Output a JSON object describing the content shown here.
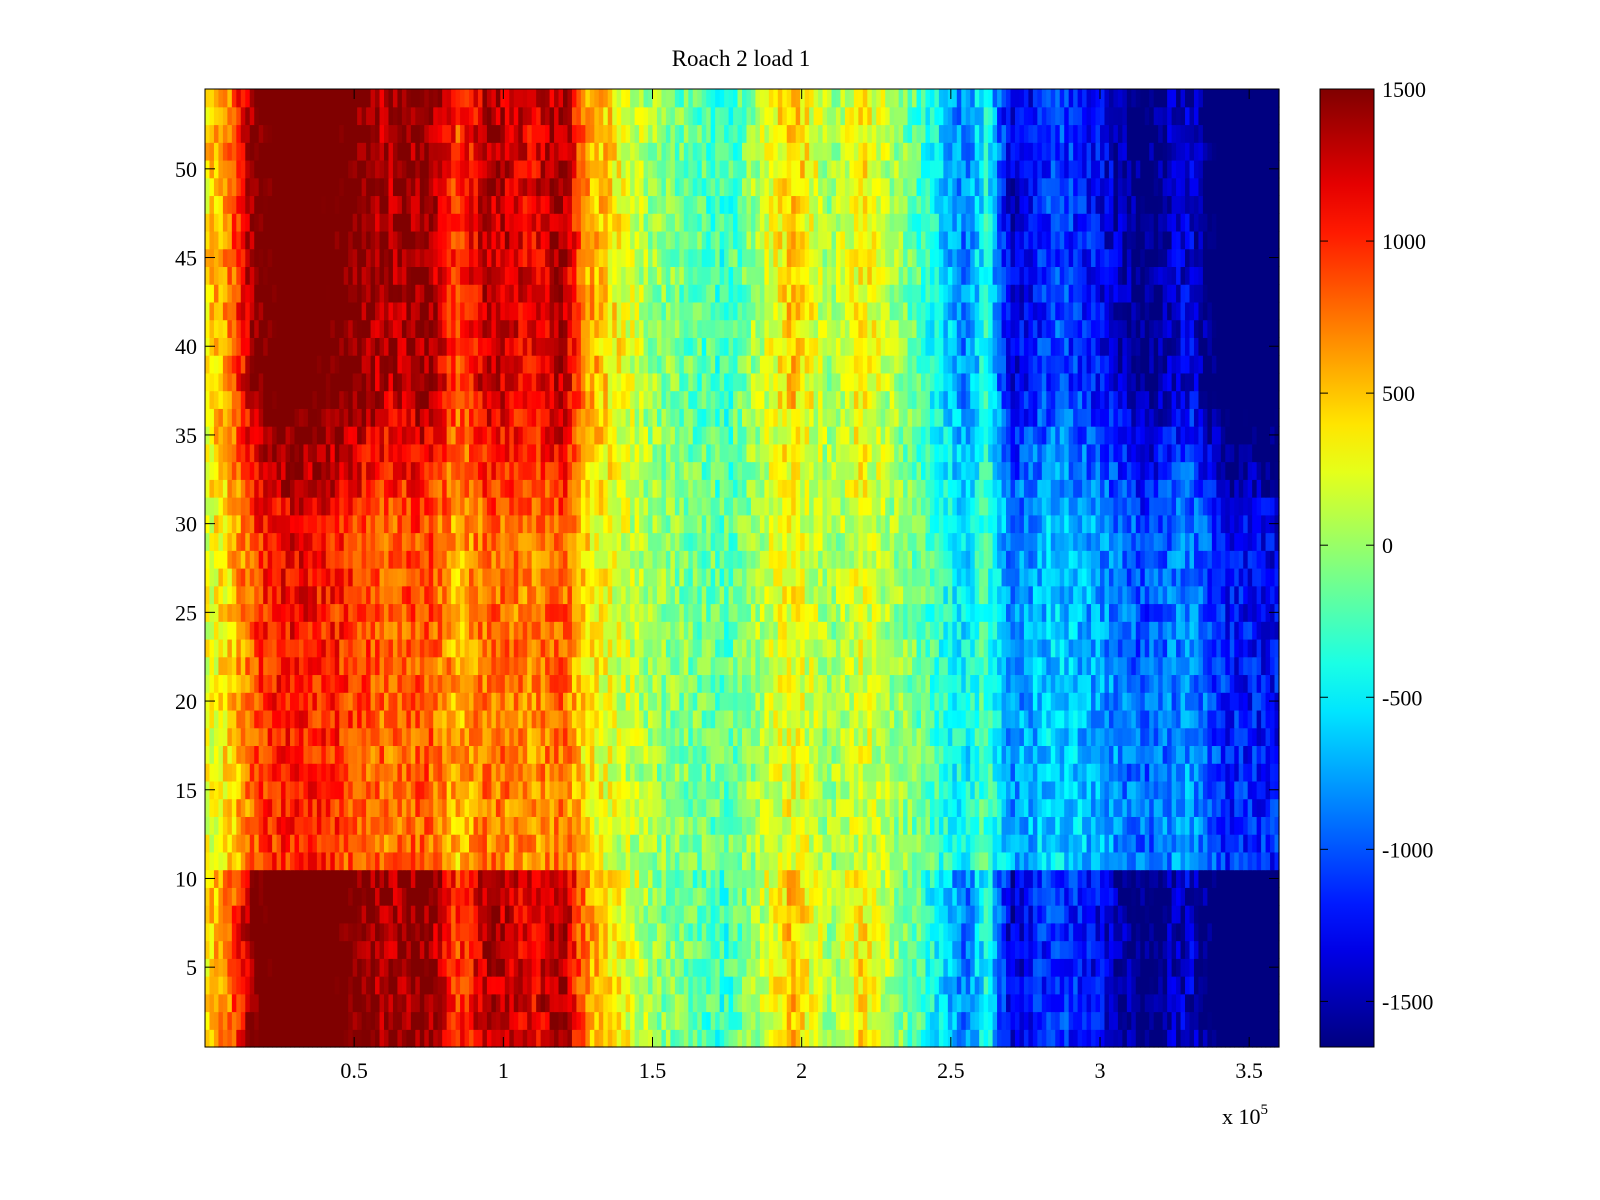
{
  "chart_data": {
    "type": "heatmap",
    "title": "Roach 2 load 1",
    "xlabel": "",
    "ylabel": "",
    "xlim": [
      0,
      3.6
    ],
    "ylim": [
      0.5,
      54.5
    ],
    "x_exponent_label": "x 10",
    "x_exponent": "5",
    "x_ticks": [
      0.5,
      1,
      1.5,
      2,
      2.5,
      3,
      3.5
    ],
    "x_tick_labels": [
      "0.5",
      "1",
      "1.5",
      "2",
      "2.5",
      "3",
      "3.5"
    ],
    "y_ticks": [
      5,
      10,
      15,
      20,
      25,
      30,
      35,
      40,
      45,
      50
    ],
    "y_tick_labels": [
      "5",
      "10",
      "15",
      "20",
      "25",
      "30",
      "35",
      "40",
      "45",
      "50"
    ],
    "colormap": "jet",
    "colorbar": {
      "clim": [
        -1650,
        1500
      ],
      "ticks": [
        1500,
        1000,
        500,
        0,
        -500,
        -1000,
        -1500
      ],
      "tick_labels": [
        "1500",
        "1000",
        "500",
        "0",
        "-500",
        "-1000",
        "-1500"
      ]
    },
    "rows": 54,
    "value_profile_by_x": [
      {
        "x": 0.0,
        "value": 300
      },
      {
        "x": 0.08,
        "value": 550
      },
      {
        "x": 0.18,
        "value": 1250
      },
      {
        "x": 0.3,
        "value": 1450
      },
      {
        "x": 0.45,
        "value": 1300
      },
      {
        "x": 0.6,
        "value": 1050
      },
      {
        "x": 0.75,
        "value": 1150
      },
      {
        "x": 0.85,
        "value": 700
      },
      {
        "x": 0.95,
        "value": 1050
      },
      {
        "x": 1.1,
        "value": 900
      },
      {
        "x": 1.2,
        "value": 1100
      },
      {
        "x": 1.28,
        "value": 500
      },
      {
        "x": 1.5,
        "value": 0
      },
      {
        "x": 1.75,
        "value": -250
      },
      {
        "x": 1.97,
        "value": 400
      },
      {
        "x": 2.1,
        "value": 0
      },
      {
        "x": 2.2,
        "value": 300
      },
      {
        "x": 2.4,
        "value": -200
      },
      {
        "x": 2.55,
        "value": -700
      },
      {
        "x": 2.62,
        "value": -300
      },
      {
        "x": 2.7,
        "value": -1100
      },
      {
        "x": 2.85,
        "value": -800
      },
      {
        "x": 3.0,
        "value": -1000
      },
      {
        "x": 3.15,
        "value": -1350
      },
      {
        "x": 3.3,
        "value": -1050
      },
      {
        "x": 3.43,
        "value": -1600
      },
      {
        "x": 3.6,
        "value": -1650
      }
    ],
    "row_contrast_by_y": [
      {
        "y": 1,
        "factor": 1.3
      },
      {
        "y": 10,
        "factor": 1.3
      },
      {
        "y": 11,
        "factor": 0.7
      },
      {
        "y": 30,
        "factor": 0.8
      },
      {
        "y": 38,
        "factor": 1.25
      },
      {
        "y": 54,
        "factor": 1.3
      }
    ]
  }
}
